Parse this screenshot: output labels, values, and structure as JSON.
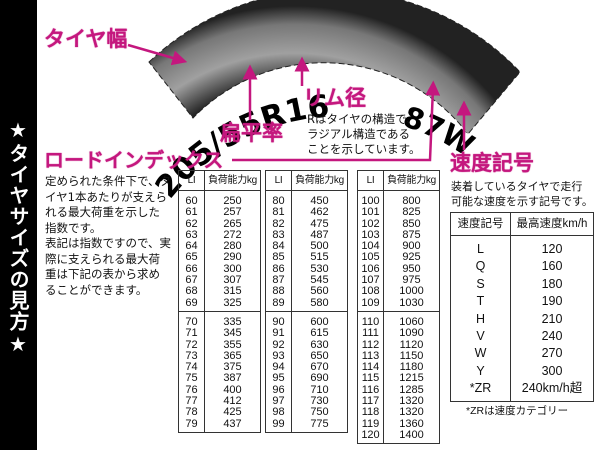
{
  "sidebar": {
    "title": "★タイヤサイズの見方★"
  },
  "tire": {
    "size_code": "205/55R16",
    "service_code": "87W",
    "colors": {
      "tire_dark": "#1a1a1a",
      "tire_light": "#9a9a9a",
      "accent": "#c4177e"
    }
  },
  "labels": {
    "width": "タイヤ幅",
    "aspect_ratio": "扁平率",
    "rim_diameter": "リム径",
    "rim_desc": [
      "Rはタイヤの構造で、",
      "ラジアル構造である",
      "ことを示しています。"
    ],
    "load_index": "ロードインデックス",
    "load_desc": [
      "定められた条件下で、タ",
      "イヤ1本あたりが支えら",
      "れる最大荷重を示した",
      "指数です。",
      "表記は指数ですので、実",
      "際に支えられる最大荷",
      "重は下記の表から求め",
      "ることができます。"
    ],
    "speed_symbol": "速度記号",
    "speed_desc": [
      "装着しているタイヤで走行",
      "可能な速度を示す記号です。"
    ]
  },
  "load_tables": {
    "headers": [
      "LI",
      "負荷能力kg"
    ],
    "blocks": [
      [
        [
          "60",
          "250"
        ],
        [
          "61",
          "257"
        ],
        [
          "62",
          "265"
        ],
        [
          "63",
          "272"
        ],
        [
          "64",
          "280"
        ],
        [
          "65",
          "290"
        ],
        [
          "66",
          "300"
        ],
        [
          "67",
          "307"
        ],
        [
          "68",
          "315"
        ],
        [
          "69",
          "325"
        ]
      ],
      [
        [
          "70",
          "335"
        ],
        [
          "71",
          "345"
        ],
        [
          "72",
          "355"
        ],
        [
          "73",
          "365"
        ],
        [
          "74",
          "375"
        ],
        [
          "75",
          "387"
        ],
        [
          "76",
          "400"
        ],
        [
          "77",
          "412"
        ],
        [
          "78",
          "425"
        ],
        [
          "79",
          "437"
        ]
      ],
      [
        [
          "80",
          "450"
        ],
        [
          "81",
          "462"
        ],
        [
          "82",
          "475"
        ],
        [
          "83",
          "487"
        ],
        [
          "84",
          "500"
        ],
        [
          "85",
          "515"
        ],
        [
          "86",
          "530"
        ],
        [
          "87",
          "545"
        ],
        [
          "88",
          "560"
        ],
        [
          "89",
          "580"
        ]
      ],
      [
        [
          "90",
          "600"
        ],
        [
          "91",
          "615"
        ],
        [
          "92",
          "630"
        ],
        [
          "93",
          "650"
        ],
        [
          "94",
          "670"
        ],
        [
          "95",
          "690"
        ],
        [
          "96",
          "710"
        ],
        [
          "97",
          "730"
        ],
        [
          "98",
          "750"
        ],
        [
          "99",
          "775"
        ]
      ],
      [
        [
          "100",
          "800"
        ],
        [
          "101",
          "825"
        ],
        [
          "102",
          "850"
        ],
        [
          "103",
          "875"
        ],
        [
          "104",
          "900"
        ],
        [
          "105",
          "925"
        ],
        [
          "106",
          "950"
        ],
        [
          "107",
          "975"
        ],
        [
          "108",
          "1000"
        ],
        [
          "109",
          "1030"
        ]
      ],
      [
        [
          "110",
          "1060"
        ],
        [
          "111",
          "1090"
        ],
        [
          "112",
          "1120"
        ],
        [
          "113",
          "1150"
        ],
        [
          "114",
          "1180"
        ],
        [
          "115",
          "1215"
        ],
        [
          "116",
          "1285"
        ],
        [
          "117",
          "1320"
        ],
        [
          "118",
          "1320"
        ],
        [
          "119",
          "1360"
        ],
        [
          "120",
          "1400"
        ]
      ]
    ]
  },
  "speed_table": {
    "headers": [
      "速度記号",
      "最高速度km/h"
    ],
    "rows": [
      [
        "L",
        "120"
      ],
      [
        "Q",
        "160"
      ],
      [
        "S",
        "180"
      ],
      [
        "T",
        "190"
      ],
      [
        "H",
        "210"
      ],
      [
        "V",
        "240"
      ],
      [
        "W",
        "270"
      ],
      [
        "Y",
        "300"
      ],
      [
        "*ZR",
        "240km/h超"
      ]
    ],
    "note": "*ZRは速度カテゴリー"
  }
}
